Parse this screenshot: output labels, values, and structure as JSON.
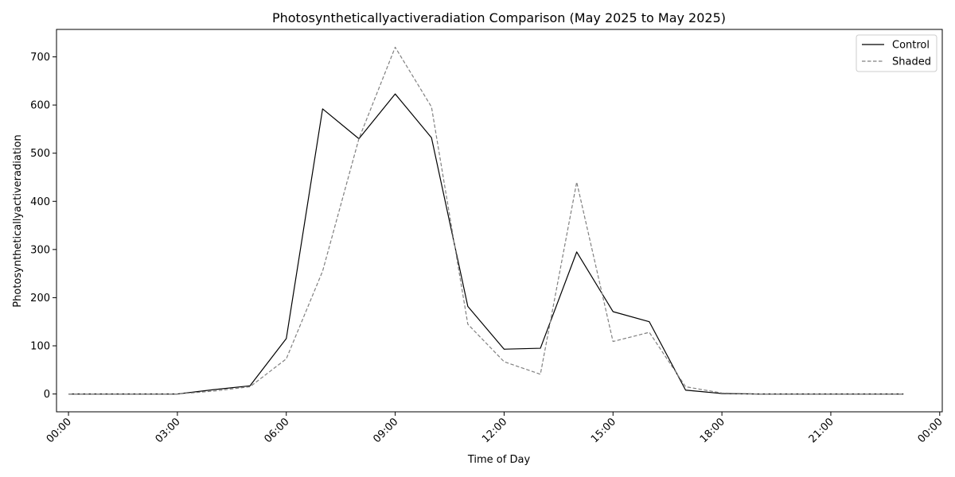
{
  "chart_data": {
    "type": "line",
    "title": "Photosyntheticallyactiveradiation Comparison (May 2025 to May 2025)",
    "xlabel": "Time of Day",
    "ylabel": "Photosyntheticallyactiveradiation",
    "x": [
      0,
      1,
      2,
      3,
      4,
      5,
      6,
      7,
      8,
      9,
      10,
      11,
      12,
      13,
      14,
      15,
      16,
      17,
      18,
      19,
      20,
      21,
      22,
      23
    ],
    "xlim": [
      -0.33,
      24.07
    ],
    "ylim": [
      -37,
      757
    ],
    "xticks": [
      {
        "value": 0,
        "label": "00:00"
      },
      {
        "value": 3,
        "label": "03:00"
      },
      {
        "value": 6,
        "label": "06:00"
      },
      {
        "value": 9,
        "label": "09:00"
      },
      {
        "value": 12,
        "label": "12:00"
      },
      {
        "value": 15,
        "label": "15:00"
      },
      {
        "value": 18,
        "label": "18:00"
      },
      {
        "value": 21,
        "label": "21:00"
      },
      {
        "value": 24,
        "label": "00:00"
      }
    ],
    "yticks": [
      0,
      100,
      200,
      300,
      400,
      500,
      600,
      700
    ],
    "grid": false,
    "legend_position": "top-right",
    "series": [
      {
        "name": "Control",
        "color": "#000000",
        "style": "solid",
        "values": [
          0,
          0,
          0,
          0,
          9,
          17,
          115,
          592,
          530,
          623,
          532,
          182,
          93,
          95,
          295,
          171,
          150,
          8,
          1,
          0,
          0,
          0,
          0,
          0
        ]
      },
      {
        "name": "Shaded",
        "color": "#808080",
        "style": "dashed",
        "values": [
          0,
          0,
          0,
          0,
          6,
          15,
          73,
          255,
          530,
          720,
          596,
          145,
          67,
          41,
          440,
          109,
          128,
          15,
          2,
          0,
          0,
          0,
          0,
          0
        ]
      }
    ]
  }
}
